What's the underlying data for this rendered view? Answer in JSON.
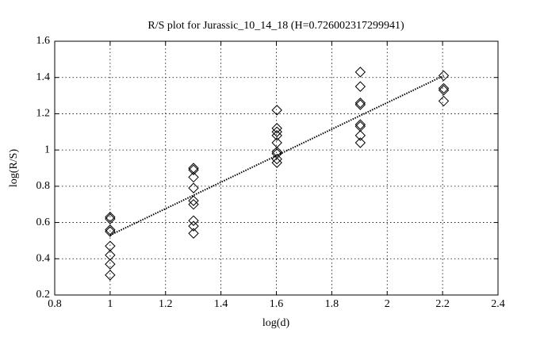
{
  "chart_data": {
    "type": "scatter",
    "title": "R/S plot for Jurassic_10_14_18 (H=0.726002317299941)",
    "xlabel": "log(d)",
    "ylabel": "log(R/S)",
    "x": [
      1,
      1,
      1,
      1,
      1,
      1,
      1,
      1,
      1.301,
      1.301,
      1.301,
      1.301,
      1.301,
      1.301,
      1.301,
      1.301,
      1.301,
      1.602,
      1.602,
      1.602,
      1.602,
      1.602,
      1.602,
      1.602,
      1.602,
      1.602,
      1.903,
      1.903,
      1.903,
      1.903,
      1.903,
      1.903,
      1.903,
      1.903,
      2.204,
      2.204,
      2.204,
      2.204
    ],
    "values": [
      0.63,
      0.62,
      0.56,
      0.55,
      0.47,
      0.42,
      0.37,
      0.31,
      0.9,
      0.89,
      0.85,
      0.79,
      0.72,
      0.7,
      0.61,
      0.58,
      0.54,
      1.22,
      1.12,
      1.1,
      1.08,
      1.04,
      0.99,
      0.98,
      0.95,
      0.93,
      1.43,
      1.35,
      1.26,
      1.25,
      1.14,
      1.13,
      1.08,
      1.04,
      1.41,
      1.34,
      1.33,
      1.27
    ],
    "color": "#000000",
    "fit_line": {
      "x": [
        1,
        2.204
      ],
      "values": [
        0.53,
        1.41
      ],
      "color": "#000000"
    },
    "xlim": [
      0.8,
      2.4
    ],
    "ylim": [
      0.2,
      1.6
    ],
    "xticks": [
      0.8,
      1,
      1.2,
      1.4,
      1.6,
      1.8,
      2,
      2.2,
      2.4
    ],
    "yticks": [
      0.2,
      0.4,
      0.6,
      0.8,
      1,
      1.2,
      1.4,
      1.6
    ],
    "grid": true
  }
}
